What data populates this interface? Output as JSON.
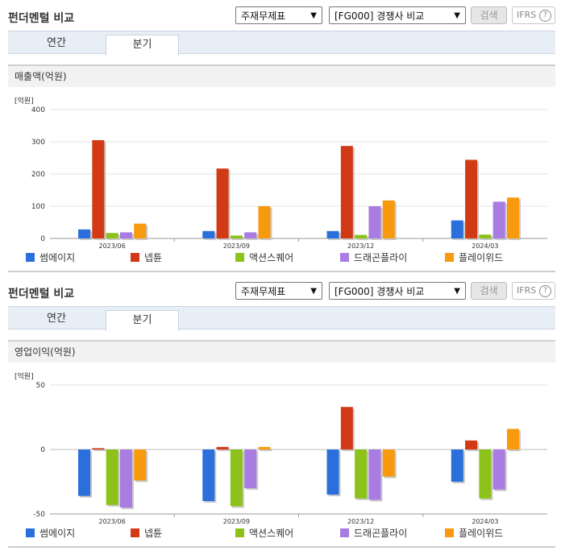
{
  "panels": [
    {
      "header": "펀더멘털 비교",
      "selects": [
        "주재무제표",
        "[FG000] 경쟁사 비교"
      ],
      "search_label": "검색",
      "ifrs_label": "IFRS",
      "ifrs_help": "?",
      "tabs": [
        "연간",
        "분기"
      ],
      "active_tab": "분기",
      "subtitle": "매출액(억원)",
      "chart_data": {
        "type": "bar",
        "title": "매출액(억원)",
        "unit_label": "[억원]",
        "categories": [
          "2023/06",
          "2023/09",
          "2023/12",
          "2024/03"
        ],
        "ylim": [
          0,
          400
        ],
        "yticks": [
          0,
          100,
          200,
          300,
          400
        ],
        "grid": true,
        "legend_position": "bottom",
        "series": [
          {
            "name": "썸에이지",
            "color": "#2a6fdb",
            "values": [
              28,
              23,
              23,
              56
            ]
          },
          {
            "name": "넵튠",
            "color": "#d13a14",
            "values": [
              305,
              217,
              287,
              244
            ]
          },
          {
            "name": "액션스퀘어",
            "color": "#8cc21a",
            "values": [
              17,
              9,
              11,
              12
            ]
          },
          {
            "name": "드래곤플라이",
            "color": "#a87ce0",
            "values": [
              19,
              19,
              100,
              114
            ]
          },
          {
            "name": "플레이위드",
            "color": "#f79a0e",
            "values": [
              46,
              100,
              118,
              127
            ]
          }
        ]
      }
    },
    {
      "header": "펀더멘털 비교",
      "selects": [
        "주재무제표",
        "[FG000] 경쟁사 비교"
      ],
      "search_label": "검색",
      "ifrs_label": "IFRS",
      "ifrs_help": "?",
      "tabs": [
        "연간",
        "분기"
      ],
      "active_tab": "분기",
      "subtitle": "영업이익(억원)",
      "chart_data": {
        "type": "bar",
        "title": "영업이익(억원)",
        "unit_label": "[억원]",
        "categories": [
          "2023/06",
          "2023/09",
          "2023/12",
          "2024/03"
        ],
        "ylim": [
          -50,
          50
        ],
        "yticks": [
          -50,
          0,
          50
        ],
        "grid": true,
        "legend_position": "bottom",
        "series": [
          {
            "name": "썸에이지",
            "color": "#2a6fdb",
            "values": [
              -36,
              -40,
              -35,
              -25
            ]
          },
          {
            "name": "넵튠",
            "color": "#d13a14",
            "values": [
              1,
              2,
              33,
              7
            ]
          },
          {
            "name": "액션스퀘어",
            "color": "#8cc21a",
            "values": [
              -43,
              -44,
              -38,
              -38
            ]
          },
          {
            "name": "드래곤플라이",
            "color": "#a87ce0",
            "values": [
              -45,
              -30,
              -39,
              -31
            ]
          },
          {
            "name": "플레이위드",
            "color": "#f79a0e",
            "values": [
              -24,
              2,
              -21,
              16
            ]
          }
        ]
      }
    }
  ]
}
